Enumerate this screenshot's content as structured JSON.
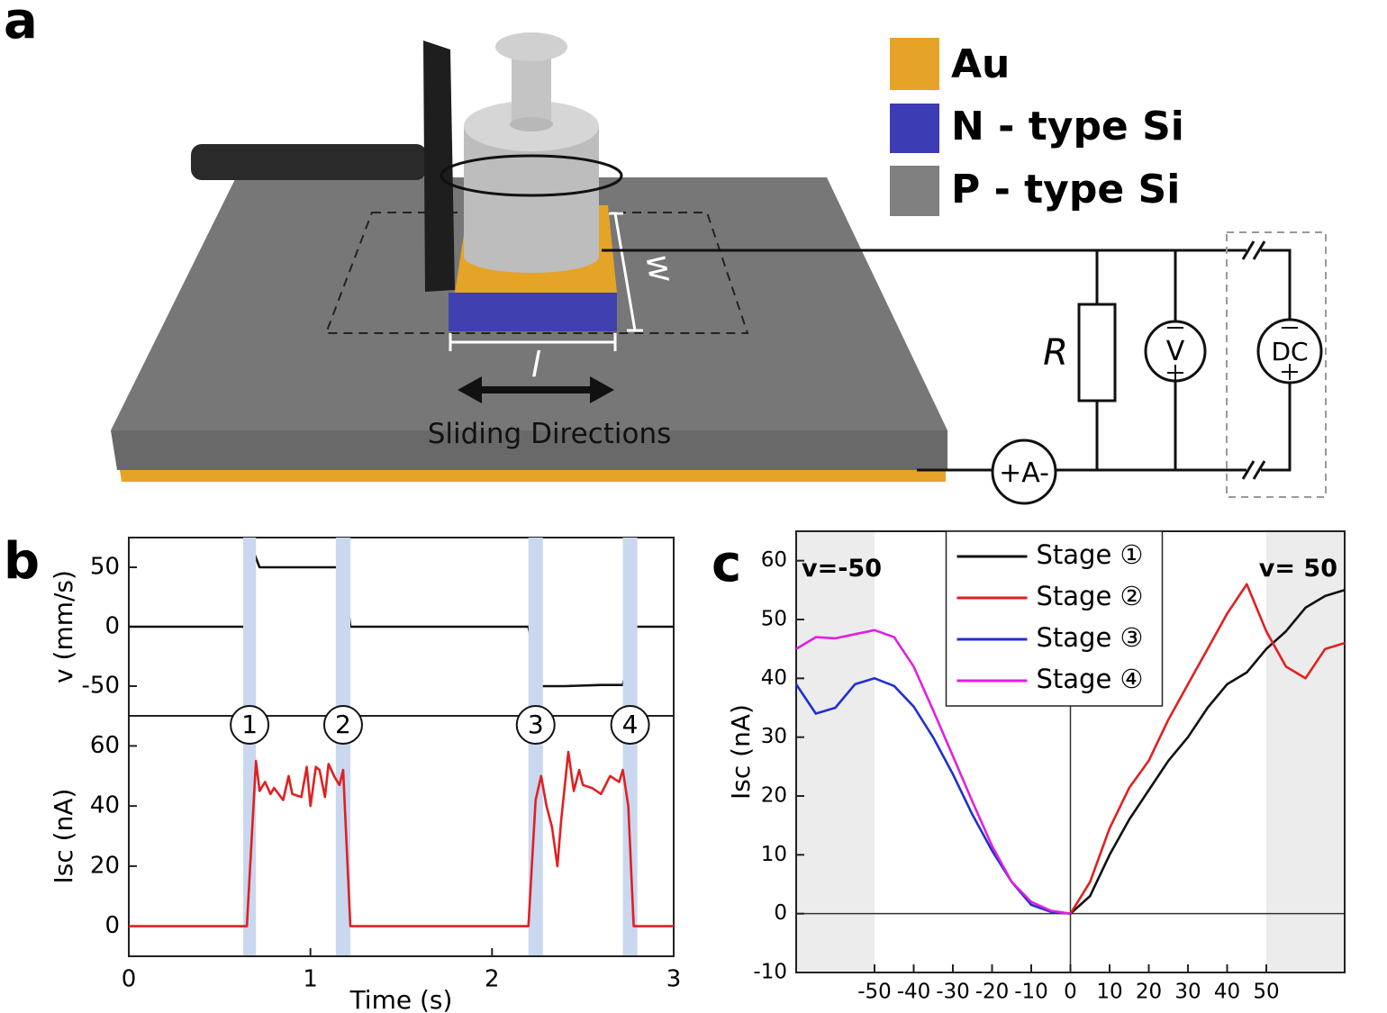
{
  "panels": [
    "a",
    "b",
    "c"
  ],
  "panel_a": {
    "legend": [
      {
        "name": "Au",
        "color": "#e5a428"
      },
      {
        "name": "N - type Si",
        "color": "#3c3cb4"
      },
      {
        "name": "P - type Si",
        "color": "#808080"
      }
    ],
    "width_label": "w",
    "length_label": "l",
    "motion_label": "Sliding Directions",
    "resistor_label": "R",
    "voltmeter_label": "V",
    "source_label": "DC",
    "ammeter_label": "+A-"
  },
  "chart_data": [
    {
      "type": "line",
      "ylabel": "v (mm/s)",
      "color": "#111111",
      "x": [
        0,
        0.65,
        0.67,
        0.69,
        0.72,
        0.8,
        0.9,
        1.0,
        1.1,
        1.17,
        1.2,
        1.22,
        1.5,
        1.8,
        2.1,
        2.2,
        2.24,
        2.26,
        2.4,
        2.6,
        2.72,
        2.75,
        2.78,
        3
      ],
      "values": [
        0,
        0,
        45,
        62,
        50,
        50,
        50,
        50,
        50,
        50,
        25,
        0,
        0,
        0,
        0,
        0,
        -30,
        -50,
        -50,
        -49,
        -49,
        -30,
        0,
        0
      ],
      "xlim": [
        0,
        3
      ],
      "ylim": [
        -75,
        75
      ],
      "yticks": [
        -50,
        0,
        50
      ]
    },
    {
      "type": "line",
      "xlabel": "Time (s)",
      "ylabel": "Isc (nA)",
      "color": "#e02020",
      "x": [
        0,
        0.5,
        0.65,
        0.7,
        0.72,
        0.75,
        0.78,
        0.8,
        0.85,
        0.88,
        0.9,
        0.95,
        0.98,
        1.0,
        1.03,
        1.05,
        1.08,
        1.1,
        1.13,
        1.16,
        1.18,
        1.22,
        1.5,
        1.8,
        2.1,
        2.2,
        2.24,
        2.27,
        2.3,
        2.33,
        2.36,
        2.38,
        2.42,
        2.45,
        2.48,
        2.5,
        2.55,
        2.6,
        2.65,
        2.7,
        2.72,
        2.75,
        2.78,
        3
      ],
      "values": [
        0,
        0,
        0,
        55,
        45,
        48,
        44,
        46,
        42,
        50,
        44,
        43,
        53,
        40,
        53,
        52,
        43,
        54,
        50,
        47,
        52,
        0,
        0,
        0,
        0,
        0,
        42,
        50,
        40,
        33,
        20,
        35,
        58,
        45,
        52,
        47,
        46,
        44,
        50,
        48,
        52,
        40,
        0,
        0
      ],
      "xlim": [
        0,
        3
      ],
      "xticks": [
        0,
        1,
        2,
        3
      ],
      "ylim": [
        -10,
        70
      ],
      "yticks": [
        0,
        20,
        40,
        60
      ],
      "bands": [
        [
          0.63,
          0.7
        ],
        [
          1.14,
          1.22
        ],
        [
          2.2,
          2.28
        ],
        [
          2.72,
          2.8
        ]
      ],
      "band_labels": [
        "1",
        "2",
        "3",
        "4"
      ]
    },
    {
      "type": "line",
      "ylabel": "Isc (nA)",
      "x": [
        -70,
        -65,
        -60,
        -55,
        -50,
        -45,
        -40,
        -35,
        -30,
        -25,
        -20,
        -15,
        -10,
        -5,
        0,
        5,
        10,
        15,
        20,
        25,
        30,
        35,
        40,
        45,
        50,
        55,
        60,
        65,
        70
      ],
      "series": [
        {
          "name": "Stage ①",
          "color": "#111111",
          "values": [
            null,
            null,
            null,
            null,
            null,
            null,
            null,
            null,
            null,
            null,
            null,
            null,
            null,
            null,
            0,
            3,
            10,
            16,
            21,
            26,
            30,
            35,
            39,
            41,
            45,
            48,
            52,
            54,
            55
          ]
        },
        {
          "name": "Stage ②",
          "color": "#e02020",
          "values": [
            null,
            null,
            null,
            null,
            null,
            null,
            null,
            null,
            null,
            null,
            null,
            null,
            null,
            null,
            0,
            5.4,
            14.5,
            21.4,
            26,
            33,
            39,
            45,
            51,
            56,
            48,
            42,
            40,
            45,
            46
          ]
        },
        {
          "name": "Stage ③",
          "color": "#2030d0",
          "values": [
            39,
            34,
            35,
            39,
            40,
            38.7,
            35.2,
            29.9,
            23.7,
            16.8,
            10.7,
            5.4,
            1.5,
            0.3,
            0,
            null,
            null,
            null,
            null,
            null,
            null,
            null,
            null,
            null,
            null,
            null,
            null,
            null,
            null
          ]
        },
        {
          "name": "Stage ④",
          "color": "#e020e0",
          "values": [
            45,
            47,
            46.8,
            47.5,
            48.2,
            47,
            42,
            34.5,
            26.8,
            19,
            11.5,
            5.4,
            2,
            0.5,
            0,
            null,
            null,
            null,
            null,
            null,
            null,
            null,
            null,
            null,
            null,
            null,
            null,
            null,
            null
          ]
        }
      ],
      "xlim": [
        -70,
        70
      ],
      "xticks": [
        -50,
        -40,
        -30,
        -20,
        -10,
        0,
        10,
        20,
        30,
        40,
        50
      ],
      "ylim": [
        -10,
        65
      ],
      "yticks": [
        -10,
        0,
        10,
        20,
        30,
        40,
        50,
        60
      ],
      "shade": [
        [
          -70,
          -50
        ],
        [
          50,
          70
        ]
      ],
      "zero_lines": true,
      "legend": "upper center",
      "annotations": [
        "v=-50",
        "v= 50"
      ]
    }
  ]
}
